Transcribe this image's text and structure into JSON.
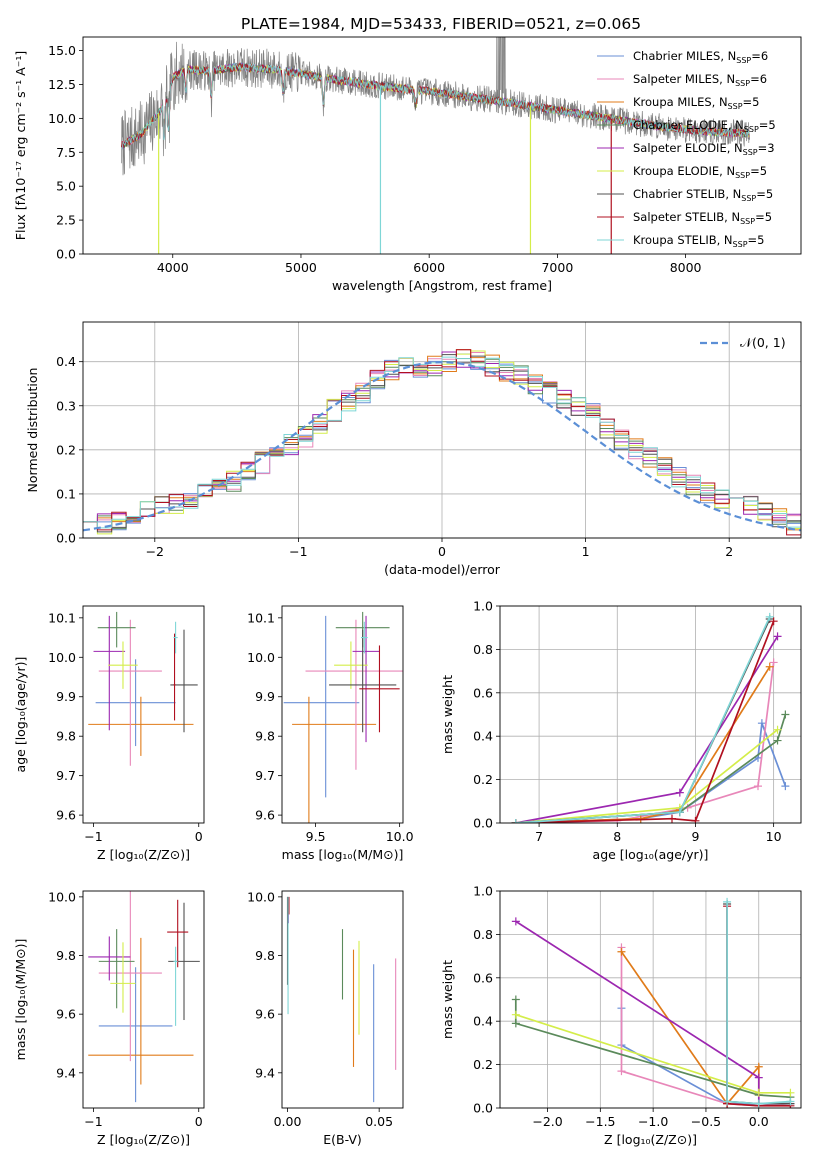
{
  "figure": {
    "title": "PLATE=1984, MJD=53433, FIBERID=0521, z=0.065"
  },
  "chart_data": [
    {
      "id": "spectrum",
      "type": "line",
      "xlabel": "wavelength [Angstrom, rest frame]",
      "ylabel": "Flux [fλ10⁻¹⁷ erg cm⁻² s⁻¹ A⁻¹]",
      "xlim": [
        3300,
        8900
      ],
      "ylim": [
        0,
        16
      ],
      "xticks": [
        4000,
        5000,
        6000,
        7000,
        8000
      ],
      "yticks": [
        0.0,
        2.5,
        5.0,
        7.5,
        10.0,
        12.5,
        15.0
      ],
      "legend_position": "top-right",
      "data_color": "#808080",
      "series": [
        {
          "name": "Chabrier MILES, N_SSP=6",
          "color": "#6a8fd6"
        },
        {
          "name": "Salpeter MILES, N_SSP=6",
          "color": "#e887b9"
        },
        {
          "name": "Kroupa MILES, N_SSP=5",
          "color": "#e07b1a"
        },
        {
          "name": "Chabrier ELODIE, N_SSP=5",
          "color": "#5b8a5b"
        },
        {
          "name": "Salpeter ELODIE, N_SSP=3",
          "color": "#9c27b0"
        },
        {
          "name": "Kroupa ELODIE, N_SSP=5",
          "color": "#d4ed4a"
        },
        {
          "name": "Chabrier STELIB, N_SSP=5",
          "color": "#505050"
        },
        {
          "name": "Salpeter STELIB, N_SSP=5",
          "color": "#b01020"
        },
        {
          "name": "Kroupa STELIB, N_SSP=5",
          "color": "#7fd6d6"
        }
      ],
      "continuum": [
        [
          3600,
          8.0
        ],
        [
          3750,
          8.8
        ],
        [
          3900,
          10.5
        ],
        [
          4000,
          13.0
        ],
        [
          4100,
          13.6
        ],
        [
          4300,
          13.5
        ],
        [
          4500,
          13.8
        ],
        [
          4800,
          13.6
        ],
        [
          5000,
          13.3
        ],
        [
          5300,
          12.8
        ],
        [
          5600,
          12.4
        ],
        [
          6000,
          12.0
        ],
        [
          6300,
          11.6
        ],
        [
          6600,
          11.2
        ],
        [
          7000,
          10.6
        ],
        [
          7400,
          10.0
        ],
        [
          7800,
          9.4
        ],
        [
          8200,
          9.0
        ],
        [
          8500,
          8.9
        ]
      ]
    },
    {
      "id": "residuals",
      "type": "bar",
      "xlabel": "(data-model)/error",
      "ylabel": "Normed distribution",
      "xlim": [
        -2.5,
        2.5
      ],
      "ylim": [
        0,
        0.49
      ],
      "xticks": [
        -2,
        -1,
        0,
        1,
        2
      ],
      "yticks": [
        0.0,
        0.1,
        0.2,
        0.3,
        0.4
      ],
      "grid": true,
      "legend": [
        {
          "name": "𝒩(0, 1)",
          "color": "#5b8fd6",
          "style": "dashed"
        }
      ],
      "legend_position": "top-right",
      "bin_edges_start": -2.5,
      "bin_width": 0.1,
      "histogram": [
        0.04,
        0.03,
        0.035,
        0.05,
        0.06,
        0.07,
        0.08,
        0.09,
        0.1,
        0.12,
        0.13,
        0.15,
        0.17,
        0.19,
        0.21,
        0.23,
        0.26,
        0.29,
        0.31,
        0.33,
        0.36,
        0.38,
        0.39,
        0.385,
        0.39,
        0.4,
        0.41,
        0.4,
        0.39,
        0.38,
        0.37,
        0.35,
        0.33,
        0.31,
        0.3,
        0.28,
        0.25,
        0.22,
        0.2,
        0.18,
        0.16,
        0.14,
        0.12,
        0.1,
        0.09,
        0.08,
        0.07,
        0.06,
        0.05,
        0.03
      ]
    },
    {
      "id": "age-vs-Z",
      "type": "scatter",
      "xlabel": "Z [log₁₀(Z/Z⊙)]",
      "ylabel": "age  [log₁₀(age/yr)]",
      "xlim": [
        -1.1,
        0.05
      ],
      "ylim": [
        9.58,
        10.13
      ],
      "xticks": [
        -1,
        0
      ],
      "yticks": [
        9.6,
        9.7,
        9.8,
        9.9,
        10.0,
        10.1
      ],
      "points": [
        {
          "x": -0.6,
          "xerr": [
            0.38,
            0.38
          ],
          "y": 9.885,
          "yerr": [
            0.11,
            0.11
          ],
          "color": "#6a8fd6"
        },
        {
          "x": -0.55,
          "xerr": [
            0.5,
            0.5
          ],
          "y": 9.83,
          "yerr": [
            0.08,
            0.07
          ],
          "color": "#e07b1a"
        },
        {
          "x": -0.65,
          "xerr": [
            0.3,
            0.3
          ],
          "y": 9.965,
          "yerr": [
            0.24,
            0.13
          ],
          "color": "#e887b9"
        },
        {
          "x": -0.78,
          "xerr": [
            0.18,
            0.18
          ],
          "y": 10.075,
          "yerr": [
            0.05,
            0.04
          ],
          "color": "#5b8a5b"
        },
        {
          "x": -0.85,
          "xerr": [
            0.15,
            0.15
          ],
          "y": 10.015,
          "yerr": [
            0.2,
            0.09
          ],
          "color": "#9c27b0"
        },
        {
          "x": -0.72,
          "xerr": [
            0.14,
            0.14
          ],
          "y": 9.98,
          "yerr": [
            0.06,
            0.06
          ],
          "color": "#d4ed4a"
        },
        {
          "x": -0.14,
          "xerr": [
            0.13,
            0.13
          ],
          "y": 9.93,
          "yerr": [
            0.12,
            0.14
          ],
          "color": "#505050"
        },
        {
          "x": -0.23,
          "xerr": [
            0.01,
            0.01
          ],
          "y": 9.93,
          "yerr": [
            0.09,
            0.13
          ],
          "color": "#b01020"
        },
        {
          "x": -0.22,
          "xerr": [
            0.02,
            0.02
          ],
          "y": 10.05,
          "yerr": [
            0.04,
            0.04
          ],
          "color": "#7fd6d6"
        }
      ]
    },
    {
      "id": "age-vs-mass",
      "type": "scatter",
      "xlabel": "mass [log₁₀(M/M⊙)]",
      "ylabel": "",
      "xlim": [
        9.3,
        10.02
      ],
      "ylim": [
        9.58,
        10.13
      ],
      "xticks": [
        9.5,
        10.0
      ],
      "yticks": [
        9.6,
        9.7,
        9.8,
        9.9,
        10.0,
        10.1
      ],
      "points": [
        {
          "x": 9.56,
          "xerr": [
            0.25,
            0.2
          ],
          "y": 9.885,
          "yerr": [
            0.24,
            0.22
          ],
          "color": "#6a8fd6"
        },
        {
          "x": 9.46,
          "xerr": [
            0.1,
            0.4
          ],
          "y": 9.83,
          "yerr": [
            0.25,
            0.07
          ],
          "color": "#e07b1a"
        },
        {
          "x": 9.74,
          "xerr": [
            0.3,
            0.3
          ],
          "y": 9.965,
          "yerr": [
            0.25,
            0.13
          ],
          "color": "#e887b9"
        },
        {
          "x": 9.78,
          "xerr": [
            0.16,
            0.16
          ],
          "y": 10.075,
          "yerr": [
            0.05,
            0.04
          ],
          "color": "#5b8a5b"
        },
        {
          "x": 9.8,
          "xerr": [
            0.08,
            0.08
          ],
          "y": 10.015,
          "yerr": [
            0.23,
            0.09
          ],
          "color": "#9c27b0"
        },
        {
          "x": 9.71,
          "xerr": [
            0.1,
            0.1
          ],
          "y": 9.98,
          "yerr": [
            0.06,
            0.06
          ],
          "color": "#d4ed4a"
        },
        {
          "x": 9.78,
          "xerr": [
            0.2,
            0.2
          ],
          "y": 9.93,
          "yerr": [
            0.12,
            0.14
          ],
          "color": "#505050"
        },
        {
          "x": 9.88,
          "xerr": [
            0.12,
            0.12
          ],
          "y": 9.92,
          "yerr": [
            0.11,
            0.11
          ],
          "color": "#b01020"
        },
        {
          "x": 9.79,
          "xerr": [
            0.02,
            0.02
          ],
          "y": 10.05,
          "yerr": [
            0.04,
            0.04
          ],
          "color": "#7fd6d6"
        }
      ]
    },
    {
      "id": "weight-vs-age",
      "type": "line",
      "xlabel": "age  [log₁₀(age/yr)]",
      "ylabel": "mass weight",
      "xlim": [
        6.5,
        10.35
      ],
      "ylim": [
        0,
        1.0
      ],
      "xticks": [
        7,
        8,
        9,
        10
      ],
      "yticks": [
        0.0,
        0.2,
        0.4,
        0.6,
        0.8,
        1.0
      ],
      "grid": true,
      "series": [
        {
          "color": "#6a8fd6",
          "x": [
            6.7,
            8.3,
            8.8,
            9.8,
            9.85,
            10.15
          ],
          "y": [
            0.0,
            0.02,
            0.05,
            0.3,
            0.46,
            0.17
          ]
        },
        {
          "color": "#e887b9",
          "x": [
            6.7,
            8.0,
            8.9,
            9.8,
            10.0
          ],
          "y": [
            0.0,
            0.01,
            0.07,
            0.17,
            0.74
          ]
        },
        {
          "color": "#e07b1a",
          "x": [
            6.7,
            8.3,
            8.8,
            9.95
          ],
          "y": [
            0.0,
            0.02,
            0.06,
            0.72
          ]
        },
        {
          "color": "#5b8a5b",
          "x": [
            6.7,
            8.8,
            10.05,
            10.15
          ],
          "y": [
            0.0,
            0.05,
            0.38,
            0.5
          ]
        },
        {
          "color": "#9c27b0",
          "x": [
            6.7,
            8.8,
            10.05
          ],
          "y": [
            0.0,
            0.14,
            0.86
          ]
        },
        {
          "color": "#d4ed4a",
          "x": [
            6.7,
            8.8,
            10.05
          ],
          "y": [
            0.0,
            0.07,
            0.43
          ]
        },
        {
          "color": "#505050",
          "x": [
            6.7,
            8.8,
            9.95
          ],
          "y": [
            0.0,
            0.05,
            0.94
          ]
        },
        {
          "color": "#b01020",
          "x": [
            6.7,
            8.7,
            9.0,
            10.0
          ],
          "y": [
            0.0,
            0.02,
            0.01,
            0.93
          ]
        },
        {
          "color": "#7fd6d6",
          "x": [
            6.7,
            8.8,
            9.95
          ],
          "y": [
            0.0,
            0.05,
            0.95
          ]
        }
      ]
    },
    {
      "id": "mass-vs-Z",
      "type": "scatter",
      "xlabel": "Z [log₁₀(Z/Z⊙)]",
      "ylabel": "mass [log₁₀(M/M⊙)]",
      "xlim": [
        -1.1,
        0.05
      ],
      "ylim": [
        9.28,
        10.02
      ],
      "xticks": [
        -1,
        0
      ],
      "yticks": [
        9.4,
        9.6,
        9.8,
        10.0
      ],
      "points": [
        {
          "x": -0.6,
          "xerr": [
            0.35,
            0.35
          ],
          "y": 9.56,
          "yerr": [
            0.26,
            0.2
          ],
          "color": "#6a8fd6"
        },
        {
          "x": -0.55,
          "xerr": [
            0.5,
            0.5
          ],
          "y": 9.46,
          "yerr": [
            0.1,
            0.4
          ],
          "color": "#e07b1a"
        },
        {
          "x": -0.65,
          "xerr": [
            0.3,
            0.3
          ],
          "y": 9.74,
          "yerr": [
            0.3,
            0.3
          ],
          "color": "#e887b9"
        },
        {
          "x": -0.78,
          "xerr": [
            0.17,
            0.17
          ],
          "y": 9.78,
          "yerr": [
            0.16,
            0.11
          ],
          "color": "#5b8a5b"
        },
        {
          "x": -0.85,
          "xerr": [
            0.2,
            0.2
          ],
          "y": 9.795,
          "yerr": [
            0.08,
            0.07
          ],
          "color": "#9c27b0"
        },
        {
          "x": -0.72,
          "xerr": [
            0.12,
            0.12
          ],
          "y": 9.705,
          "yerr": [
            0.1,
            0.14
          ],
          "color": "#d4ed4a"
        },
        {
          "x": -0.14,
          "xerr": [
            0.15,
            0.15
          ],
          "y": 9.78,
          "yerr": [
            0.2,
            0.2
          ],
          "color": "#505050"
        },
        {
          "x": -0.2,
          "xerr": [
            0.1,
            0.1
          ],
          "y": 9.88,
          "yerr": [
            0.12,
            0.11
          ],
          "color": "#b01020"
        },
        {
          "x": -0.22,
          "xerr": [
            0.02,
            0.02
          ],
          "y": 9.78,
          "yerr": [
            0.22,
            0.05
          ],
          "color": "#7fd6d6"
        }
      ]
    },
    {
      "id": "mass-vs-ebv",
      "type": "scatter",
      "xlabel": "E(B-V)",
      "ylabel": "",
      "xlim": [
        -0.003,
        0.063
      ],
      "ylim": [
        9.28,
        10.02
      ],
      "xticks": [
        0.0,
        0.05
      ],
      "yticks": [
        9.4,
        9.6,
        9.8,
        10.0
      ],
      "points": [
        {
          "x": 0.047,
          "y": 9.535,
          "yerr": [
            0.235,
            0.235
          ],
          "color": "#6a8fd6"
        },
        {
          "x": 0.036,
          "y": 9.62,
          "yerr": [
            0.2,
            0.2
          ],
          "color": "#e07b1a"
        },
        {
          "x": 0.059,
          "y": 9.6,
          "yerr": [
            0.19,
            0.19
          ],
          "color": "#e887b9"
        },
        {
          "x": 0.03,
          "y": 9.77,
          "yerr": [
            0.12,
            0.12
          ],
          "color": "#5b8a5b"
        },
        {
          "x": 0.0005,
          "y": 9.95,
          "yerr": [
            0.04,
            0.04
          ],
          "color": "#9c27b0"
        },
        {
          "x": 0.039,
          "y": 9.69,
          "yerr": [
            0.16,
            0.16
          ],
          "color": "#d4ed4a"
        },
        {
          "x": 0.0,
          "y": 9.85,
          "yerr": [
            0.15,
            0.15
          ],
          "color": "#505050"
        },
        {
          "x": 0.0008,
          "y": 9.97,
          "yerr": [
            0.03,
            0.03
          ],
          "color": "#b01020"
        },
        {
          "x": 0.0003,
          "y": 9.8,
          "yerr": [
            0.2,
            0.2
          ],
          "color": "#7fd6d6"
        }
      ]
    },
    {
      "id": "weight-vs-Z",
      "type": "line",
      "xlabel": "Z [log₁₀(Z/Z⊙)]",
      "ylabel": "mass weight",
      "xlim": [
        -2.45,
        0.4
      ],
      "ylim": [
        0,
        1.0
      ],
      "xticks": [
        -2.0,
        -1.5,
        -1.0,
        -0.5,
        0.0
      ],
      "yticks": [
        0.0,
        0.2,
        0.4,
        0.6,
        0.8,
        1.0
      ],
      "grid": true,
      "series": [
        {
          "color": "#6a8fd6",
          "x": [
            -1.3,
            -1.3,
            -0.3,
            0.0,
            0.3
          ],
          "y": [
            0.46,
            0.29,
            0.02,
            0.02,
            0.02
          ]
        },
        {
          "color": "#e887b9",
          "x": [
            -1.3,
            -1.3,
            -0.3,
            0.0,
            0.3
          ],
          "y": [
            0.74,
            0.17,
            0.02,
            0.01,
            0.02
          ]
        },
        {
          "color": "#e07b1a",
          "x": [
            -1.3,
            -0.3,
            0.0,
            0.0
          ],
          "y": [
            0.72,
            0.02,
            0.19,
            0.06
          ]
        },
        {
          "color": "#5b8a5b",
          "x": [
            -2.3,
            -2.3,
            0.0,
            0.3
          ],
          "y": [
            0.5,
            0.39,
            0.06,
            0.05
          ]
        },
        {
          "color": "#9c27b0",
          "x": [
            -2.3,
            0.0,
            0.0
          ],
          "y": [
            0.86,
            0.14,
            0.02
          ]
        },
        {
          "color": "#d4ed4a",
          "x": [
            -2.3,
            0.0,
            0.3
          ],
          "y": [
            0.43,
            0.07,
            0.07
          ]
        },
        {
          "color": "#505050",
          "x": [
            -0.3,
            -0.3,
            0.0,
            0.3
          ],
          "y": [
            0.94,
            0.03,
            0.02,
            0.02
          ]
        },
        {
          "color": "#b01020",
          "x": [
            -0.3,
            -0.3,
            0.0,
            0.3
          ],
          "y": [
            0.93,
            0.02,
            0.01,
            0.01
          ]
        },
        {
          "color": "#7fd6d6",
          "x": [
            -0.3,
            -0.3,
            0.0,
            0.3
          ],
          "y": [
            0.95,
            0.03,
            0.02,
            0.03
          ]
        }
      ]
    }
  ]
}
